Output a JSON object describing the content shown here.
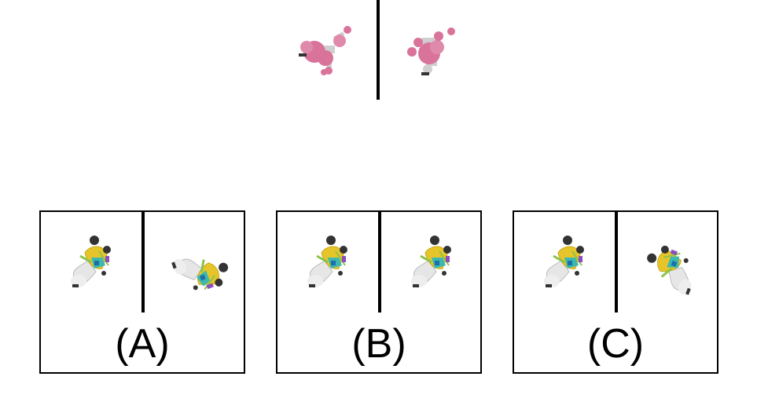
{
  "reference": {
    "left_icon": "pink-molecule-icon",
    "right_icon": "pink-molecule-rotated-icon",
    "color": "#d9739a"
  },
  "options": [
    {
      "id": "A",
      "label": "(A)",
      "left_icon": "robot-toy-icon",
      "right_icon": "robot-toy-rotated-icon"
    },
    {
      "id": "B",
      "label": "(B)",
      "left_icon": "robot-toy-icon",
      "right_icon": "robot-toy-icon"
    },
    {
      "id": "C",
      "label": "(C)",
      "left_icon": "robot-toy-icon",
      "right_icon": "robot-toy-rotated-icon"
    }
  ],
  "colors": {
    "yellow": "#e6c52a",
    "teal": "#3bb8b0",
    "white_body": "#e6e6e6",
    "dark": "#333333",
    "purple": "#8a4fbf",
    "green": "#8bc34a"
  }
}
